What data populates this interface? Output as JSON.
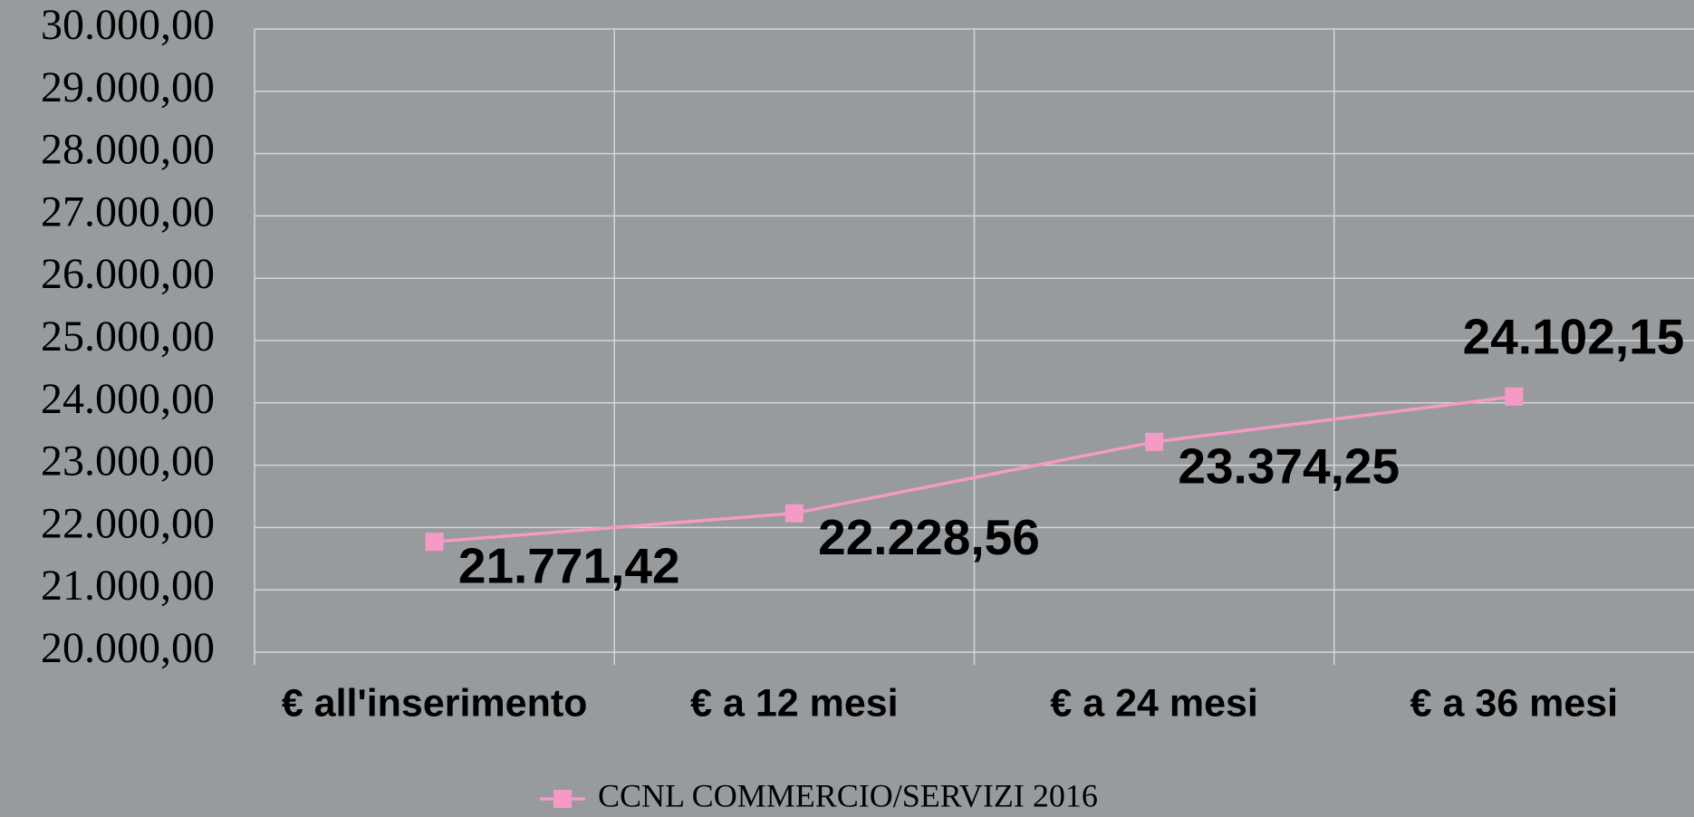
{
  "chart_data": {
    "type": "line",
    "categories": [
      "€ all'inserimento",
      "€ a 12 mesi",
      "€ a 24 mesi",
      "€ a 36 mesi"
    ],
    "series": [
      {
        "name": "CCNL COMMERCIO/SERVIZI 2016",
        "color": "#f59ac6",
        "values": [
          21771.42,
          22228.56,
          23374.25,
          24102.15
        ],
        "value_labels": [
          "21.771,42",
          "22.228,56",
          "23.374,25",
          "24.102,15"
        ]
      }
    ],
    "ylim": [
      20000,
      30000
    ],
    "yticks": [
      {
        "value": 20000,
        "label": "20.000,00"
      },
      {
        "value": 21000,
        "label": "21.000,00"
      },
      {
        "value": 22000,
        "label": "22.000,00"
      },
      {
        "value": 23000,
        "label": "23.000,00"
      },
      {
        "value": 24000,
        "label": "24.000,00"
      },
      {
        "value": 25000,
        "label": "25.000,00"
      },
      {
        "value": 26000,
        "label": "26.000,00"
      },
      {
        "value": 27000,
        "label": "27.000,00"
      },
      {
        "value": 28000,
        "label": "28.000,00"
      },
      {
        "value": 29000,
        "label": "29.000,00"
      },
      {
        "value": 30000,
        "label": "30.000,00"
      }
    ],
    "grid": true,
    "legend": "bottom"
  }
}
